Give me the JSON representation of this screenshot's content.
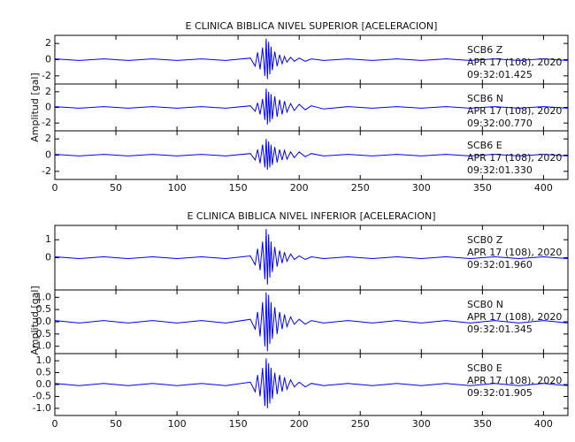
{
  "chart_data": [
    {
      "type": "line",
      "title": "E CLINICA BIBLICA NIVEL SUPERIOR [ACELERACION]",
      "ylabel": "Amplitud [gal]",
      "xlim": [
        0,
        420
      ],
      "xticks": [
        0,
        50,
        100,
        150,
        200,
        250,
        300,
        350,
        400
      ],
      "x": [
        0,
        20,
        40,
        60,
        80,
        100,
        120,
        140,
        160,
        164,
        166,
        168,
        170,
        172,
        173,
        174,
        175,
        176,
        177,
        178,
        180,
        182,
        184,
        186,
        188,
        190,
        193,
        196,
        200,
        205,
        210,
        220,
        240,
        260,
        280,
        300,
        320,
        340,
        360,
        380,
        400,
        420
      ],
      "panels": [
        {
          "name": "SCB6   Z",
          "date": "APR 17 (108), 2020",
          "time": "09:32:01.425",
          "color": "#0000ff",
          "ylim": [
            -3,
            3
          ],
          "yticks": [
            -2,
            0,
            2
          ],
          "values": [
            0.1,
            -0.1,
            0.1,
            -0.1,
            0.1,
            -0.1,
            0.1,
            -0.1,
            0.2,
            -0.8,
            0.9,
            -1.2,
            1.5,
            -2.0,
            2.6,
            -2.4,
            2.2,
            -1.8,
            1.6,
            -1.3,
            1.0,
            -0.8,
            0.6,
            -0.5,
            0.4,
            -0.3,
            0.3,
            -0.2,
            0.2,
            -0.2,
            0.1,
            -0.1,
            0.1,
            -0.1,
            0.1,
            -0.1,
            0.1,
            -0.1,
            0.1,
            -0.1,
            0.1,
            -0.1
          ]
        },
        {
          "name": "SCB6   N",
          "date": "APR 17 (108), 2020",
          "time": "09:32:00.770",
          "color": "#0000ff",
          "ylim": [
            -3,
            3
          ],
          "yticks": [
            -2,
            0,
            2
          ],
          "values": [
            0.1,
            -0.1,
            0.1,
            -0.1,
            0.1,
            -0.1,
            0.1,
            -0.1,
            0.2,
            -0.5,
            0.6,
            -0.9,
            1.1,
            -1.6,
            2.4,
            -2.2,
            2.0,
            -1.9,
            1.7,
            -1.5,
            1.4,
            -1.2,
            1.0,
            -0.9,
            0.8,
            -0.6,
            0.5,
            -0.4,
            0.4,
            -0.3,
            0.2,
            -0.2,
            0.1,
            -0.1,
            0.1,
            -0.1,
            0.1,
            -0.1,
            0.1,
            -0.1,
            0.1,
            -0.1
          ]
        },
        {
          "name": "SCB6   E",
          "date": "APR 17 (108), 2020",
          "time": "09:32:01.330",
          "color": "#0000ff",
          "ylim": [
            -3,
            3
          ],
          "yticks": [
            -2,
            0,
            2
          ],
          "values": [
            0.1,
            -0.1,
            0.1,
            -0.1,
            0.1,
            -0.1,
            0.1,
            -0.1,
            0.2,
            -0.6,
            0.7,
            -1.0,
            1.3,
            -1.5,
            2.0,
            -1.8,
            1.7,
            -1.5,
            1.3,
            -1.2,
            1.0,
            -0.9,
            0.7,
            -0.6,
            0.6,
            -0.5,
            0.4,
            -0.3,
            0.4,
            -0.2,
            0.2,
            -0.1,
            0.1,
            -0.1,
            0.1,
            -0.1,
            0.1,
            -0.1,
            0.1,
            -0.1,
            0.1,
            -0.1
          ]
        }
      ]
    },
    {
      "type": "line",
      "title": "E CLINICA BIBLICA NIVEL INFERIOR [ACELERACION]",
      "ylabel": "Amplitud [gal]",
      "xlim": [
        0,
        420
      ],
      "xticks": [
        0,
        50,
        100,
        150,
        200,
        250,
        300,
        350,
        400
      ],
      "x": [
        0,
        20,
        40,
        60,
        80,
        100,
        120,
        140,
        160,
        164,
        166,
        168,
        170,
        172,
        173,
        174,
        175,
        176,
        177,
        178,
        180,
        182,
        184,
        186,
        188,
        190,
        193,
        196,
        200,
        205,
        210,
        220,
        240,
        260,
        280,
        300,
        320,
        340,
        360,
        380,
        400,
        420
      ],
      "panels": [
        {
          "name": "SCB0   Z",
          "date": "APR 17 (108), 2020",
          "time": "09:32:01.960",
          "color": "#0000ff",
          "ylim": [
            -1.8,
            1.8
          ],
          "yticks": [
            0,
            1
          ],
          "values": [
            0.05,
            -0.05,
            0.05,
            -0.05,
            0.05,
            -0.05,
            0.05,
            -0.05,
            0.1,
            -0.4,
            0.5,
            -0.7,
            0.9,
            -1.2,
            1.6,
            -1.5,
            1.3,
            -1.1,
            0.9,
            -0.8,
            0.6,
            -0.5,
            0.4,
            -0.3,
            0.3,
            -0.2,
            0.2,
            -0.1,
            0.1,
            -0.1,
            0.05,
            -0.05,
            0.05,
            -0.05,
            0.05,
            -0.05,
            0.05,
            -0.05,
            0.05,
            -0.05,
            0.05,
            -0.05
          ]
        },
        {
          "name": "SCB0   N",
          "date": "APR 17 (108), 2020",
          "time": "09:32:01.345",
          "color": "#0000ff",
          "ylim": [
            -1.3,
            1.3
          ],
          "yticks": [
            {
              "value": -1,
              "label": "-1.0"
            },
            {
              "value": -0.5,
              "label": "-0.5"
            },
            {
              "value": 0,
              "label": "0.0"
            },
            {
              "value": 0.5,
              "label": "0.5"
            },
            {
              "value": 1,
              "label": "1.0"
            }
          ],
          "values": [
            0.05,
            -0.05,
            0.05,
            -0.05,
            0.05,
            -0.05,
            0.05,
            -0.05,
            0.1,
            -0.3,
            0.4,
            -0.6,
            0.8,
            -1.0,
            1.2,
            -1.2,
            1.1,
            -0.9,
            0.8,
            -0.7,
            0.6,
            -0.5,
            0.4,
            -0.3,
            0.3,
            -0.2,
            0.2,
            -0.1,
            0.1,
            -0.1,
            0.05,
            -0.05,
            0.05,
            -0.05,
            0.05,
            -0.05,
            0.05,
            -0.05,
            0.05,
            -0.05,
            0.05,
            -0.05
          ]
        },
        {
          "name": "SCB0   E",
          "date": "APR 17 (108), 2020",
          "time": "09:32:01.905",
          "color": "#0000ff",
          "ylim": [
            -1.3,
            1.3
          ],
          "yticks": [
            {
              "value": -1,
              "label": "-1.0"
            },
            {
              "value": -0.5,
              "label": "-0.5"
            },
            {
              "value": 0,
              "label": "0.0"
            },
            {
              "value": 0.5,
              "label": "0.5"
            },
            {
              "value": 1,
              "label": "1.0"
            }
          ],
          "values": [
            0.05,
            -0.05,
            0.05,
            -0.05,
            0.05,
            -0.05,
            0.05,
            -0.05,
            0.1,
            -0.3,
            0.4,
            -0.5,
            0.7,
            -0.9,
            1.1,
            -1.0,
            0.9,
            -0.8,
            0.7,
            -0.6,
            0.5,
            -0.4,
            0.4,
            -0.3,
            0.3,
            -0.2,
            0.2,
            -0.1,
            0.1,
            -0.1,
            0.05,
            -0.05,
            0.05,
            -0.05,
            0.05,
            -0.05,
            0.05,
            -0.05,
            0.05,
            -0.05,
            0.05,
            -0.05
          ]
        }
      ]
    }
  ]
}
